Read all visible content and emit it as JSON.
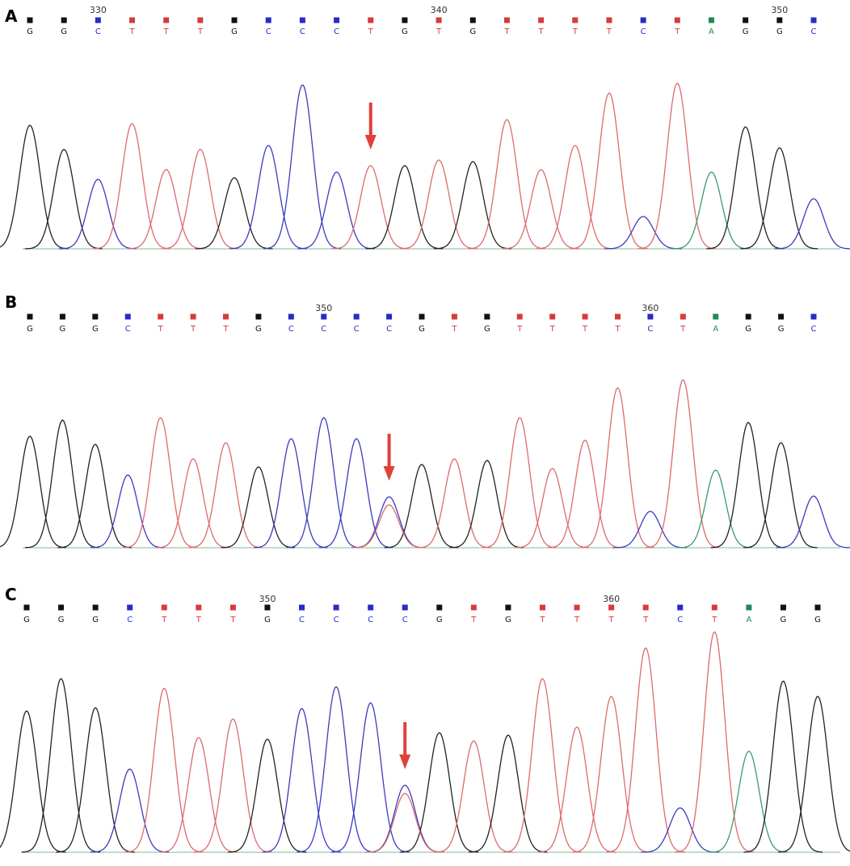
{
  "base_colors": {
    "G": "#111111",
    "C": "#2a2ac8",
    "T": "#d83a3a",
    "A": "#1f8a55"
  },
  "peak_colors": {
    "G": "#222222",
    "C": "#3b3bc0",
    "T": "#dd6a6a",
    "A": "#3a9a72"
  },
  "panels": [
    {
      "label": "A",
      "positions": [
        330,
        340,
        350
      ],
      "bases": [
        "G",
        "G",
        "C",
        "T",
        "T",
        "T",
        "G",
        "C",
        "C",
        "C",
        "T",
        "G",
        "T",
        "G",
        "T",
        "T",
        "T",
        "T",
        "C",
        "T",
        "A",
        "G",
        "G",
        "C"
      ],
      "peaks": [
        153,
        123,
        86,
        155,
        98,
        123,
        88,
        128,
        203,
        95,
        103,
        103,
        110,
        108,
        160,
        98,
        128,
        193,
        40,
        205,
        95,
        151,
        125,
        62
      ],
      "secondary": null
    },
    {
      "label": "B",
      "positions": [
        350,
        360
      ],
      "bases": [
        "G",
        "G",
        "G",
        "C",
        "T",
        "T",
        "T",
        "G",
        "C",
        "C",
        "C",
        "C",
        "G",
        "T",
        "G",
        "T",
        "T",
        "T",
        "T",
        "C",
        "T",
        "A",
        "G",
        "G",
        "C"
      ],
      "peaks": [
        138,
        158,
        128,
        90,
        161,
        110,
        130,
        100,
        135,
        161,
        135,
        63,
        103,
        110,
        108,
        161,
        98,
        133,
        198,
        45,
        208,
        96,
        155,
        130,
        64
      ],
      "secondary": {
        "base": "T",
        "height": 53
      }
    },
    {
      "label": "C",
      "positions": [
        350,
        360
      ],
      "bases": [
        "G",
        "G",
        "G",
        "C",
        "T",
        "T",
        "T",
        "G",
        "C",
        "C",
        "C",
        "C",
        "G",
        "T",
        "G",
        "T",
        "T",
        "T",
        "T",
        "C",
        "T",
        "A",
        "G",
        "G"
      ],
      "peaks": [
        175,
        215,
        179,
        103,
        203,
        142,
        165,
        140,
        178,
        205,
        185,
        83,
        148,
        138,
        145,
        215,
        155,
        193,
        253,
        55,
        273,
        125,
        212,
        193
      ],
      "secondary": {
        "base": "T",
        "height": 73
      }
    }
  ]
}
